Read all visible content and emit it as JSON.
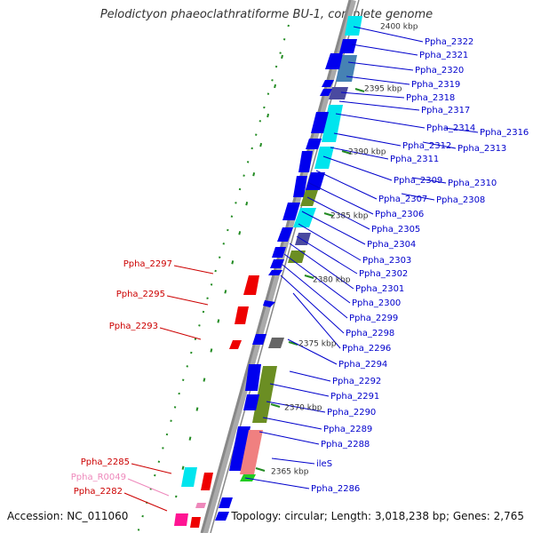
{
  "title": "Pelodictyon phaeoclathratiforme BU-1, complete genome",
  "footer": {
    "accession": "Accession: NC_011060",
    "summary": "Topology: circular; Length: 3,018,238 bp; Genes: 2,765"
  },
  "scale_labels": [
    "2400 kbp",
    "2395 kbp",
    "2390 kbp",
    "2385 kbp",
    "2380 kbp",
    "2375 kbp",
    "2370 kbp",
    "2365 kbp"
  ],
  "colors": {
    "forward_label": "#0000cc",
    "reverse_label": "#cc0000",
    "rna_label": "#ee88bb",
    "backbone": "#888888",
    "tick": "#228b22",
    "cds": "#0000ee",
    "cds_red": "#ee0000",
    "cyan": "#00e5ee",
    "olive": "#6b8e23",
    "slate": "#4a4aa0",
    "gray": "#666666",
    "salmon": "#f08080",
    "green": "#22cc22",
    "pink": "#ff1493"
  },
  "forward_labels": [
    "Ppha_2322",
    "Ppha_2321",
    "Ppha_2320",
    "Ppha_2319",
    "Ppha_2318",
    "Ppha_2317",
    "Ppha_2314",
    "Ppha_2316",
    "Ppha_2312",
    "Ppha_2313",
    "Ppha_2311",
    "Ppha_2309",
    "Ppha_2310",
    "Ppha_2307",
    "Ppha_2308",
    "Ppha_2306",
    "Ppha_2305",
    "Ppha_2304",
    "Ppha_2303",
    "Ppha_2302",
    "Ppha_2301",
    "Ppha_2300",
    "Ppha_2299",
    "Ppha_2298",
    "Ppha_2296",
    "Ppha_2294",
    "Ppha_2292",
    "Ppha_2291",
    "Ppha_2290",
    "Ppha_2289",
    "Ppha_2288",
    "ileS",
    "Ppha_2286"
  ],
  "reverse_labels": [
    "Ppha_2297",
    "Ppha_2295",
    "Ppha_2293",
    "Ppha_2285",
    "Ppha_R0049",
    "Ppha_2282"
  ]
}
